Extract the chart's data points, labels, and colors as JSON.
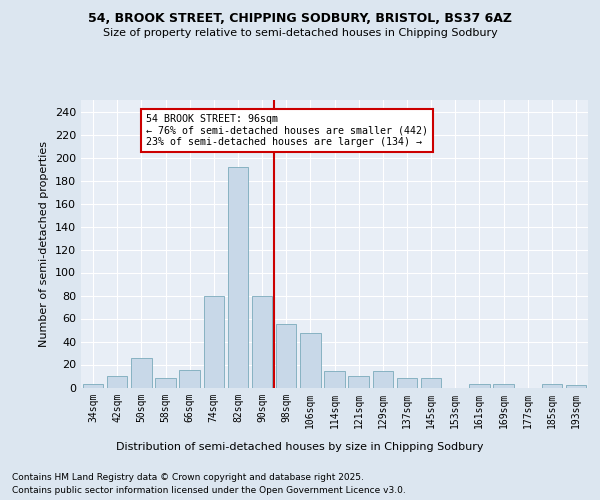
{
  "title1": "54, BROOK STREET, CHIPPING SODBURY, BRISTOL, BS37 6AZ",
  "title2": "Size of property relative to semi-detached houses in Chipping Sodbury",
  "xlabel": "Distribution of semi-detached houses by size in Chipping Sodbury",
  "ylabel": "Number of semi-detached properties",
  "categories": [
    "34sqm",
    "42sqm",
    "50sqm",
    "58sqm",
    "66sqm",
    "74sqm",
    "82sqm",
    "90sqm",
    "98sqm",
    "106sqm",
    "114sqm",
    "121sqm",
    "129sqm",
    "137sqm",
    "145sqm",
    "153sqm",
    "161sqm",
    "169sqm",
    "177sqm",
    "185sqm",
    "193sqm"
  ],
  "values": [
    3,
    10,
    26,
    8,
    15,
    80,
    192,
    80,
    55,
    47,
    14,
    10,
    14,
    8,
    8,
    0,
    3,
    3,
    0,
    3,
    2
  ],
  "bar_color": "#c8d8e8",
  "bar_edge_color": "#7aaabb",
  "vline_color": "#cc0000",
  "annotation_title": "54 BROOK STREET: 96sqm",
  "annotation_line1": "← 76% of semi-detached houses are smaller (442)",
  "annotation_line2": "23% of semi-detached houses are larger (134) →",
  "annotation_box_facecolor": "#ffffff",
  "annotation_box_edgecolor": "#cc0000",
  "footer1": "Contains HM Land Registry data © Crown copyright and database right 2025.",
  "footer2": "Contains public sector information licensed under the Open Government Licence v3.0.",
  "ylim": [
    0,
    250
  ],
  "yticks": [
    0,
    20,
    40,
    60,
    80,
    100,
    120,
    140,
    160,
    180,
    200,
    220,
    240
  ],
  "bg_color": "#dce6f0",
  "plot_bg_color": "#e8eef6",
  "grid_color": "#ffffff"
}
